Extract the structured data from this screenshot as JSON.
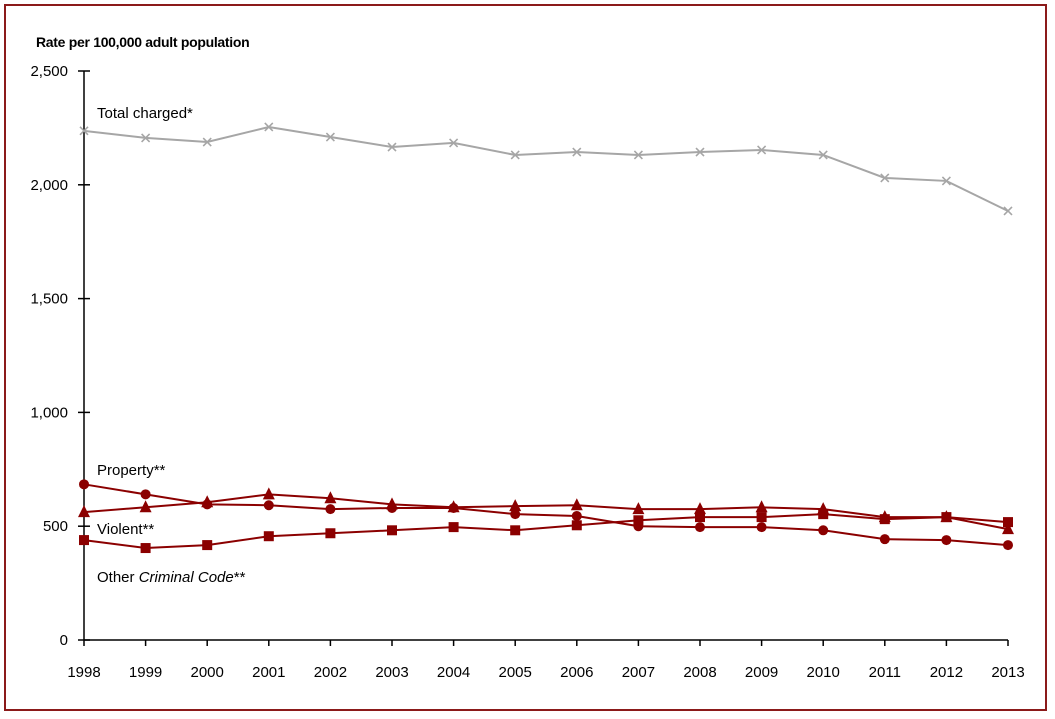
{
  "chart_data": {
    "type": "line",
    "title": "",
    "ylabel": "Rate per 100,000 adult population",
    "xlabel": "",
    "ylim": [
      0,
      2500
    ],
    "yticks": [
      0,
      500,
      1000,
      1500,
      2000,
      2500
    ],
    "ytick_labels": [
      "0",
      "500",
      "1,000",
      "1,500",
      "2,000",
      "2,500"
    ],
    "grid": false,
    "x": [
      "1998",
      "1999",
      "2000",
      "2001",
      "2002",
      "2003",
      "2004",
      "2005",
      "2006",
      "2007",
      "2008",
      "2009",
      "2010",
      "2011",
      "2012",
      "2013"
    ],
    "series": [
      {
        "name": "Total charged*",
        "label_parts": [
          "Total charged*"
        ],
        "color": "#a6a6a6",
        "marker": "x",
        "values": [
          2237,
          2206,
          2188,
          2254,
          2210,
          2166,
          2184,
          2131,
          2144,
          2131,
          2144,
          2153,
          2131,
          2030,
          2017,
          1885
        ]
      },
      {
        "name": "Property**",
        "label_parts": [
          "Property**"
        ],
        "color": "#8b0000",
        "marker": "circle",
        "values": [
          684,
          640,
          596,
          592,
          575,
          580,
          580,
          553,
          545,
          500,
          496,
          496,
          482,
          443,
          439,
          417
        ]
      },
      {
        "name": "Violent**",
        "label_parts": [
          "Violent**"
        ],
        "color": "#8b0000",
        "marker": "triangle",
        "values": [
          562,
          583,
          605,
          640,
          623,
          596,
          583,
          588,
          592,
          575,
          575,
          583,
          575,
          540,
          540,
          487
        ]
      },
      {
        "name": "Other Criminal Code**",
        "label_parts": [
          "Other ",
          "Criminal Code",
          "**"
        ],
        "color": "#8b0000",
        "marker": "square",
        "values": [
          439,
          404,
          417,
          456,
          469,
          482,
          496,
          482,
          504,
          526,
          540,
          540,
          553,
          531,
          540,
          518
        ]
      }
    ]
  },
  "frame_color": "#8b1a1a"
}
